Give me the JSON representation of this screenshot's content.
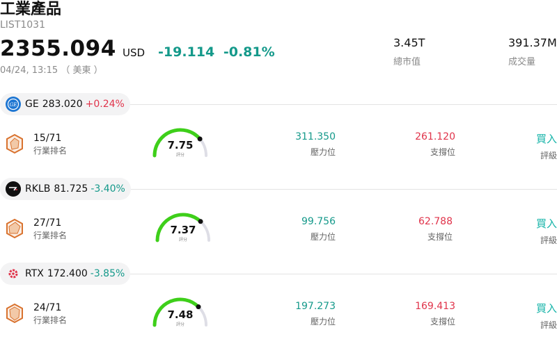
{
  "header": {
    "title": "工業產品",
    "code": "LIST1031",
    "price": "2355.094",
    "currency": "USD",
    "change": "-19.114",
    "change_pct": "-0.81%",
    "time": "04/24, 13:15 （ 美東 ）",
    "colors": {
      "down": "#14998a",
      "up": "#e0334a"
    }
  },
  "stats": [
    {
      "value": "3.45T",
      "label": "總市值"
    },
    {
      "value": "391.37M",
      "label": "成交量"
    }
  ],
  "stocks": [
    {
      "ticker": "GE",
      "price": "283.020",
      "pct": "+0.24%",
      "logo_icon": "ge-logo-icon",
      "rank": "15/71",
      "rank_label": "行業排名",
      "score": "7.75",
      "score_label": "評分",
      "score_fraction": 0.775,
      "pressure": "311.350",
      "pressure_label": "壓力位",
      "support": "261.120",
      "support_label": "支撐位",
      "rating": "買入",
      "rating_label": "評級"
    },
    {
      "ticker": "RKLB",
      "price": "81.725",
      "pct": "-3.40%",
      "logo_icon": "rocket-lab-logo-icon",
      "rank": "27/71",
      "rank_label": "行業排名",
      "score": "7.37",
      "score_label": "評分",
      "score_fraction": 0.737,
      "pressure": "99.756",
      "pressure_label": "壓力位",
      "support": "62.788",
      "support_label": "支撐位",
      "rating": "買入",
      "rating_label": "評級"
    },
    {
      "ticker": "RTX",
      "price": "172.400",
      "pct": "-3.85%",
      "logo_icon": "rtx-logo-icon",
      "rank": "24/71",
      "rank_label": "行業排名",
      "score": "7.48",
      "score_label": "評分",
      "score_fraction": 0.748,
      "pressure": "197.273",
      "pressure_label": "壓力位",
      "support": "169.413",
      "support_label": "支撐位",
      "rating": "買入",
      "rating_label": "評級"
    }
  ]
}
